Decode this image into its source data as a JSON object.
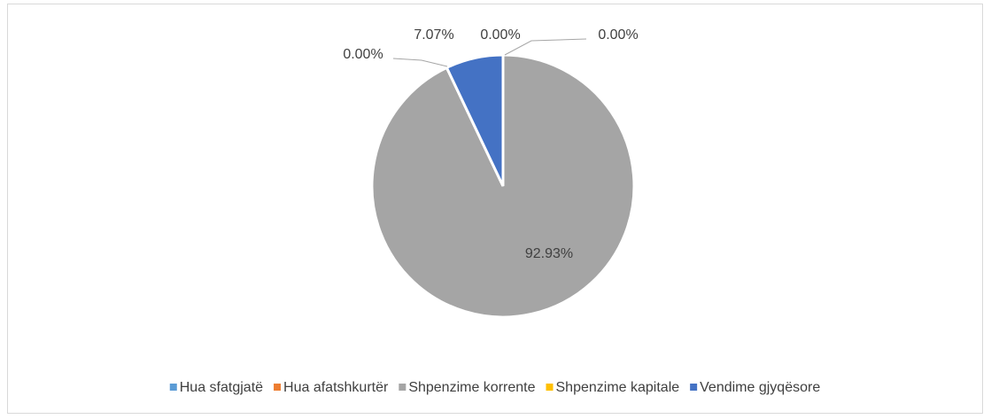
{
  "chart_data": {
    "type": "pie",
    "categories": [
      "Hua sfatgjatë",
      "Hua afatshkurtër",
      "Shpenzime korrente",
      "Shpenzime kapitale",
      "Vendime gjyqësore"
    ],
    "values": [
      0,
      0,
      92.93,
      0,
      7.07
    ],
    "value_labels": [
      "0.00%",
      "0.00%",
      "92.93%",
      "0.00%",
      "7.07%"
    ],
    "colors": [
      "#5b9bd5",
      "#ed7d31",
      "#a5a5a5",
      "#ffc000",
      "#4472c4"
    ],
    "legend": "bottom"
  }
}
